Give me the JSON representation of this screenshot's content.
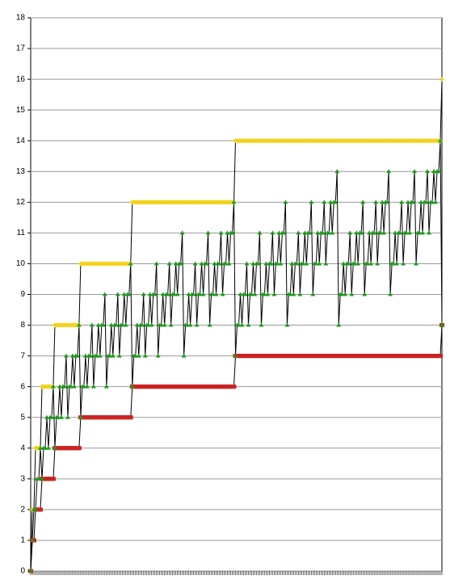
{
  "chart_data": {
    "type": "line",
    "categories": [
      null,
      null,
      null,
      null,
      null,
      null,
      null,
      null,
      null,
      null,
      null,
      null,
      null,
      null,
      null,
      null,
      null,
      null,
      null,
      null,
      null,
      null,
      null,
      null,
      null,
      null,
      null,
      null,
      null,
      null,
      null,
      null,
      null,
      null,
      null,
      null,
      null,
      null,
      null,
      null,
      null,
      null,
      null,
      null,
      null,
      null,
      null,
      null,
      null,
      null,
      null,
      null,
      null,
      null,
      null,
      null,
      null,
      null,
      null,
      null,
      null,
      null,
      null,
      null,
      null,
      null,
      null,
      null,
      null,
      null,
      null,
      null,
      null,
      null,
      null,
      null,
      null,
      null,
      null,
      null,
      null,
      null,
      null,
      null,
      null,
      null,
      null,
      null,
      null,
      null,
      null,
      null,
      null,
      null,
      null,
      null,
      null,
      null,
      null,
      null,
      null,
      null,
      null,
      null,
      null,
      null,
      null,
      null,
      null,
      null,
      null,
      null,
      null,
      null,
      null,
      null,
      null,
      null,
      null,
      null,
      null,
      null,
      null,
      null,
      null,
      null,
      null,
      null,
      null,
      null,
      null,
      null,
      null,
      null,
      null,
      null,
      null,
      null,
      null,
      null,
      null,
      null,
      null,
      null,
      null,
      null,
      null,
      null,
      null,
      null,
      null,
      null,
      null,
      null,
      null,
      null,
      null,
      null,
      null,
      null,
      null,
      null,
      null,
      null,
      null,
      null,
      null,
      null,
      null,
      null,
      null,
      null,
      null,
      null,
      null,
      null,
      null,
      null,
      null,
      null,
      null,
      null,
      null,
      null,
      null,
      null,
      null,
      null,
      null,
      null,
      null,
      null,
      null,
      null,
      null,
      null,
      null,
      null,
      null,
      null,
      null,
      null,
      null,
      null,
      null,
      null,
      null,
      null,
      null,
      null,
      null,
      null,
      null,
      null,
      null,
      null,
      null,
      null,
      null,
      null,
      null,
      null,
      null,
      null,
      null,
      null,
      null,
      null,
      null,
      null,
      null,
      null,
      null,
      null,
      null,
      null,
      null,
      null,
      null,
      null,
      null,
      null,
      null,
      null,
      null,
      null,
      null,
      null,
      null,
      null,
      null,
      null,
      null,
      null,
      null,
      null
    ],
    "series": [
      {
        "color": "#f2d21a",
        "marker": "diamond",
        "values": [
          0,
          2,
          2,
          4,
          4,
          4,
          4,
          6,
          6,
          6,
          6,
          6,
          6,
          6,
          6,
          8,
          8,
          8,
          8,
          8,
          8,
          8,
          8,
          8,
          8,
          8,
          8,
          8,
          8,
          8,
          8,
          10,
          10,
          10,
          10,
          10,
          10,
          10,
          10,
          10,
          10,
          10,
          10,
          10,
          10,
          10,
          10,
          10,
          10,
          10,
          10,
          10,
          10,
          10,
          10,
          10,
          10,
          10,
          10,
          10,
          10,
          10,
          10,
          12,
          12,
          12,
          12,
          12,
          12,
          12,
          12,
          12,
          12,
          12,
          12,
          12,
          12,
          12,
          12,
          12,
          12,
          12,
          12,
          12,
          12,
          12,
          12,
          12,
          12,
          12,
          12,
          12,
          12,
          12,
          12,
          12,
          12,
          12,
          12,
          12,
          12,
          12,
          12,
          12,
          12,
          12,
          12,
          12,
          12,
          12,
          12,
          12,
          12,
          12,
          12,
          12,
          12,
          12,
          12,
          12,
          12,
          12,
          12,
          12,
          12,
          12,
          12,
          14,
          14,
          14,
          14,
          14,
          14,
          14,
          14,
          14,
          14,
          14,
          14,
          14,
          14,
          14,
          14,
          14,
          14,
          14,
          14,
          14,
          14,
          14,
          14,
          14,
          14,
          14,
          14,
          14,
          14,
          14,
          14,
          14,
          14,
          14,
          14,
          14,
          14,
          14,
          14,
          14,
          14,
          14,
          14,
          14,
          14,
          14,
          14,
          14,
          14,
          14,
          14,
          14,
          14,
          14,
          14,
          14,
          14,
          14,
          14,
          14,
          14,
          14,
          14,
          14,
          14,
          14,
          14,
          14,
          14,
          14,
          14,
          14,
          14,
          14,
          14,
          14,
          14,
          14,
          14,
          14,
          14,
          14,
          14,
          14,
          14,
          14,
          14,
          14,
          14,
          14,
          14,
          14,
          14,
          14,
          14,
          14,
          14,
          14,
          14,
          14,
          14,
          14,
          14,
          14,
          14,
          14,
          14,
          14,
          14,
          14,
          14,
          14,
          14,
          14,
          14,
          14,
          14,
          14,
          14,
          14,
          14,
          14,
          14,
          14,
          14,
          14,
          14,
          16
        ]
      },
      {
        "color": "#cc2222",
        "marker": "square",
        "values": [
          0,
          1,
          1,
          2,
          2,
          2,
          2,
          3,
          3,
          3,
          3,
          3,
          3,
          3,
          3,
          4,
          4,
          4,
          4,
          4,
          4,
          4,
          4,
          4,
          4,
          4,
          4,
          4,
          4,
          4,
          4,
          5,
          5,
          5,
          5,
          5,
          5,
          5,
          5,
          5,
          5,
          5,
          5,
          5,
          5,
          5,
          5,
          5,
          5,
          5,
          5,
          5,
          5,
          5,
          5,
          5,
          5,
          5,
          5,
          5,
          5,
          5,
          5,
          6,
          6,
          6,
          6,
          6,
          6,
          6,
          6,
          6,
          6,
          6,
          6,
          6,
          6,
          6,
          6,
          6,
          6,
          6,
          6,
          6,
          6,
          6,
          6,
          6,
          6,
          6,
          6,
          6,
          6,
          6,
          6,
          6,
          6,
          6,
          6,
          6,
          6,
          6,
          6,
          6,
          6,
          6,
          6,
          6,
          6,
          6,
          6,
          6,
          6,
          6,
          6,
          6,
          6,
          6,
          6,
          6,
          6,
          6,
          6,
          6,
          6,
          6,
          6,
          7,
          7,
          7,
          7,
          7,
          7,
          7,
          7,
          7,
          7,
          7,
          7,
          7,
          7,
          7,
          7,
          7,
          7,
          7,
          7,
          7,
          7,
          7,
          7,
          7,
          7,
          7,
          7,
          7,
          7,
          7,
          7,
          7,
          7,
          7,
          7,
          7,
          7,
          7,
          7,
          7,
          7,
          7,
          7,
          7,
          7,
          7,
          7,
          7,
          7,
          7,
          7,
          7,
          7,
          7,
          7,
          7,
          7,
          7,
          7,
          7,
          7,
          7,
          7,
          7,
          7,
          7,
          7,
          7,
          7,
          7,
          7,
          7,
          7,
          7,
          7,
          7,
          7,
          7,
          7,
          7,
          7,
          7,
          7,
          7,
          7,
          7,
          7,
          7,
          7,
          7,
          7,
          7,
          7,
          7,
          7,
          7,
          7,
          7,
          7,
          7,
          7,
          7,
          7,
          7,
          7,
          7,
          7,
          7,
          7,
          7,
          7,
          7,
          7,
          7,
          7,
          7,
          7,
          7,
          7,
          7,
          7,
          7,
          7,
          7,
          7,
          7,
          7,
          8
        ]
      },
      {
        "color": "#1f9a1f",
        "marker": "triangle",
        "values": [
          0,
          1,
          2,
          2,
          3,
          3,
          4,
          3,
          4,
          4,
          5,
          4,
          5,
          5,
          6,
          4,
          5,
          5,
          6,
          5,
          6,
          6,
          7,
          5,
          6,
          6,
          7,
          6,
          7,
          7,
          8,
          5,
          6,
          6,
          7,
          6,
          7,
          7,
          8,
          6,
          7,
          7,
          8,
          7,
          8,
          8,
          9,
          6,
          7,
          7,
          8,
          7,
          8,
          8,
          9,
          7,
          8,
          8,
          9,
          8,
          9,
          9,
          10,
          6,
          7,
          7,
          8,
          7,
          8,
          8,
          9,
          7,
          8,
          8,
          9,
          8,
          9,
          9,
          10,
          7,
          8,
          8,
          9,
          8,
          9,
          9,
          10,
          8,
          9,
          9,
          10,
          9,
          10,
          10,
          11,
          7,
          8,
          8,
          9,
          8,
          9,
          9,
          10,
          8,
          9,
          9,
          10,
          9,
          10,
          10,
          11,
          8,
          9,
          9,
          10,
          9,
          10,
          10,
          11,
          9,
          10,
          10,
          11,
          10,
          11,
          11,
          12,
          7,
          8,
          8,
          9,
          8,
          9,
          9,
          10,
          8,
          9,
          9,
          10,
          9,
          10,
          10,
          11,
          8,
          9,
          9,
          10,
          9,
          10,
          10,
          11,
          9,
          10,
          10,
          11,
          10,
          11,
          11,
          12,
          8,
          9,
          9,
          10,
          9,
          10,
          10,
          11,
          9,
          10,
          10,
          11,
          10,
          11,
          11,
          12,
          9,
          10,
          10,
          11,
          10,
          11,
          11,
          12,
          10,
          11,
          11,
          12,
          11,
          12,
          12,
          13,
          8,
          9,
          9,
          10,
          9,
          10,
          10,
          11,
          9,
          10,
          10,
          11,
          10,
          11,
          11,
          12,
          9,
          10,
          10,
          11,
          10,
          11,
          11,
          12,
          10,
          11,
          11,
          12,
          11,
          12,
          12,
          13,
          9,
          10,
          10,
          11,
          10,
          11,
          11,
          12,
          10,
          11,
          11,
          12,
          11,
          12,
          12,
          13,
          10,
          11,
          11,
          12,
          11,
          12,
          12,
          13,
          11,
          12,
          12,
          13,
          12,
          13,
          13,
          14,
          8
        ]
      }
    ],
    "line_color": "#000000",
    "ylim": [
      0,
      18
    ],
    "yticks": [
      0,
      1,
      2,
      3,
      4,
      5,
      6,
      7,
      8,
      9,
      10,
      11,
      12,
      13,
      14,
      15,
      16,
      17,
      18
    ],
    "grid": true
  }
}
